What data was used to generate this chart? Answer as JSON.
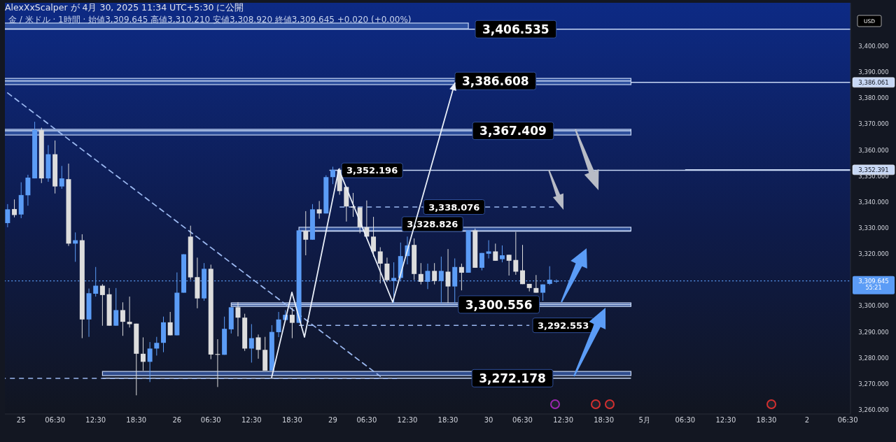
{
  "chart_data": {
    "type": "candlestick",
    "title": "AlexXxScalper が 4月 30, 2025 11:34 UTC+5:30 に公開",
    "subtitle": "金 / 米ドル · 1時間 · 始値3,309.645 高値3,310.210 安値3,308.920 終値3,309.645 +0.020 (+0.00%)",
    "ylabel": "USD",
    "categories": [
      null,
      null,
      "25",
      null,
      null,
      null,
      null,
      "06:30",
      null,
      null,
      null,
      null,
      null,
      "12:30",
      null,
      null,
      null,
      null,
      null,
      "18:30",
      null,
      null,
      null,
      null,
      null,
      "26",
      null,
      null,
      null,
      null,
      "06:30",
      null,
      null,
      null,
      null,
      null,
      "12:30",
      null,
      null,
      null,
      null,
      null,
      "18:30",
      null,
      null,
      null,
      null,
      null,
      "29",
      null,
      null,
      null,
      null,
      "06:30",
      null,
      null,
      null,
      null,
      null,
      "12:30",
      null,
      null,
      null,
      null,
      null,
      "18:30",
      null,
      null,
      null,
      null,
      null,
      "30",
      null,
      null,
      null,
      null,
      "06:30",
      null,
      null,
      null,
      null,
      null,
      "12:30",
      null,
      null,
      null,
      null,
      null,
      "18:30",
      null,
      null,
      null,
      null,
      null,
      "5月",
      null,
      null,
      null,
      null,
      null,
      "06:30",
      null,
      null,
      null,
      null,
      null,
      "12:30",
      null,
      null,
      null,
      null,
      null,
      "18:30",
      null,
      null,
      null,
      null,
      null,
      "2",
      null,
      null,
      null,
      null,
      null,
      "06:30"
    ],
    "ohlc": [
      [
        3331.9,
        3339.2,
        3330.3,
        3337.2
      ],
      [
        3337.3,
        3341.0,
        3334.1,
        3335.0
      ],
      [
        3335.2,
        3347.6,
        3333.8,
        3342.7
      ],
      [
        3342.6,
        3350.5,
        3338.6,
        3349.4
      ],
      [
        3349.1,
        3370.9,
        3349.1,
        3367.7
      ],
      [
        3367.7,
        3368.6,
        3347.3,
        3349.1
      ],
      [
        3349.1,
        3361.9,
        3347.8,
        3358.4
      ],
      [
        3358.4,
        3363.7,
        3343.3,
        3346.0
      ],
      [
        3346.0,
        3353.9,
        3345.1,
        3349.1
      ],
      [
        3348.8,
        3354.8,
        3323.1,
        3324.0
      ],
      [
        3324.0,
        3328.3,
        3317.0,
        3325.3
      ],
      [
        3325.3,
        3327.6,
        3287.6,
        3294.8
      ],
      [
        3294.8,
        3306.7,
        3288.1,
        3304.9
      ],
      [
        3304.7,
        3315.0,
        3303.6,
        3307.8
      ],
      [
        3307.8,
        3308.4,
        3292.4,
        3304.2
      ],
      [
        3304.5,
        3306.9,
        3292.4,
        3292.4
      ],
      [
        3292.4,
        3306.9,
        3292.4,
        3298.4
      ],
      [
        3298.4,
        3301.4,
        3288.5,
        3293.9
      ],
      [
        3293.9,
        3303.6,
        3291.7,
        3293.0
      ],
      [
        3293.2,
        3293.2,
        3265.6,
        3281.6
      ],
      [
        3281.6,
        3287.9,
        3275.1,
        3278.5
      ],
      [
        3278.5,
        3286.1,
        3270.7,
        3283.6
      ],
      [
        3283.6,
        3288.1,
        3280.9,
        3285.8
      ],
      [
        3285.8,
        3295.9,
        3282.2,
        3293.7
      ],
      [
        3293.7,
        3297.7,
        3288.7,
        3288.7
      ],
      [
        3288.7,
        3312.9,
        3288.7,
        3305.1
      ],
      [
        3305.1,
        3319.9,
        3305.1,
        3319.9
      ],
      [
        3326.7,
        3330.9,
        3310.1,
        3311.0
      ],
      [
        3311.1,
        3318.6,
        3299.1,
        3302.9
      ],
      [
        3302.9,
        3316.5,
        3302.0,
        3314.3
      ],
      [
        3314.3,
        3315.9,
        3279.5,
        3281.3
      ],
      [
        3281.5,
        3287.2,
        3268.8,
        3281.2
      ],
      [
        3281.2,
        3295.9,
        3281.2,
        3291.2
      ],
      [
        3291.0,
        3299.5,
        3289.4,
        3299.5
      ],
      [
        3299.5,
        3301.5,
        3288.3,
        3295.5
      ],
      [
        3295.5,
        3297.0,
        3282.7,
        3283.6
      ],
      [
        3283.6,
        3293.0,
        3278.2,
        3287.6
      ],
      [
        3287.9,
        3289.0,
        3279.7,
        3283.1
      ],
      [
        3283.1,
        3288.1,
        3275.1,
        3275.1
      ],
      [
        3275.1,
        3292.6,
        3275.1,
        3290.0
      ],
      [
        3289.9,
        3297.7,
        3288.0,
        3294.8
      ],
      [
        3294.6,
        3298.4,
        3294.0,
        3296.6
      ],
      [
        3296.6,
        3299.3,
        3287.6,
        3293.5
      ],
      [
        3293.5,
        3329.1,
        3293.5,
        3329.1
      ],
      [
        3328.9,
        3336.5,
        3319.5,
        3325.5
      ],
      [
        3325.5,
        3339.2,
        3325.5,
        3337.2
      ],
      [
        3337.2,
        3340.4,
        3333.6,
        3335.6
      ],
      [
        3335.6,
        3350.3,
        3335.6,
        3349.6
      ],
      [
        3349.6,
        3353.6,
        3346.9,
        3352.4
      ],
      [
        3352.4,
        3353.1,
        3342.8,
        3344.2
      ],
      [
        3345.8,
        3346.0,
        3332.5,
        3338.3
      ],
      [
        3338.3,
        3343.5,
        3334.3,
        3337.9
      ],
      [
        3337.9,
        3337.9,
        3328.0,
        3330.3
      ],
      [
        3330.3,
        3340.6,
        3325.8,
        3326.7
      ],
      [
        3326.7,
        3334.3,
        3319.0,
        3321.0
      ],
      [
        3321.0,
        3322.6,
        3308.7,
        3316.3
      ],
      [
        3316.3,
        3318.6,
        3309.2,
        3309.9
      ],
      [
        3309.6,
        3316.8,
        3301.1,
        3310.8
      ],
      [
        3310.8,
        3324.4,
        3309.6,
        3319.2
      ],
      [
        3319.2,
        3326.7,
        3316.0,
        3323.3
      ],
      [
        3323.5,
        3326.0,
        3310.0,
        3312.3
      ],
      [
        3312.3,
        3316.5,
        3308.3,
        3309.3
      ],
      [
        3309.3,
        3316.3,
        3306.5,
        3313.5
      ],
      [
        3313.5,
        3316.5,
        3308.3,
        3309.6
      ],
      [
        3309.6,
        3319.0,
        3301.1,
        3313.5
      ],
      [
        3313.2,
        3321.9,
        3301.1,
        3307.5
      ],
      [
        3307.5,
        3318.3,
        3301.1,
        3315.0
      ],
      [
        3315.0,
        3316.3,
        3306.0,
        3312.8
      ],
      [
        3312.8,
        3329.1,
        3312.8,
        3329.1
      ],
      [
        3329.1,
        3329.8,
        3314.7,
        3314.7
      ],
      [
        3314.7,
        3320.4,
        3313.7,
        3320.4
      ],
      [
        3320.1,
        3325.3,
        3318.3,
        3321.0
      ],
      [
        3321.0,
        3324.0,
        3317.4,
        3317.4
      ],
      [
        3318.0,
        3323.3,
        3316.8,
        3319.5
      ],
      [
        3319.7,
        3319.7,
        3311.7,
        3317.4
      ],
      [
        3317.7,
        3328.5,
        3312.0,
        3313.2
      ],
      [
        3313.7,
        3323.5,
        3308.4,
        3308.4
      ],
      [
        3308.5,
        3308.5,
        3305.6,
        3306.9
      ],
      [
        3306.9,
        3311.9,
        3305.1,
        3305.1
      ],
      [
        3305.1,
        3308.3,
        3302.0,
        3308.3
      ],
      [
        3308.5,
        3315.3,
        3308.1,
        3310.1
      ],
      [
        3309.645,
        3310.21,
        3308.92,
        3309.645
      ],
      null,
      null,
      null,
      null,
      null,
      null,
      null,
      null,
      null,
      null,
      null,
      null,
      null,
      null,
      null,
      null,
      null,
      null,
      null,
      null,
      null,
      null,
      null,
      null,
      null,
      null,
      null,
      null,
      null,
      null,
      null,
      null,
      null,
      null,
      null,
      null,
      null,
      null,
      null,
      null,
      null,
      null,
      null
    ],
    "colors": [
      "#5b9cf6",
      "#dddddd",
      "#5b9cf6",
      "#5b9cf6",
      "#5b9cf6",
      "#dddddd",
      "#5b9cf6",
      "#dddddd",
      "#5b9cf6",
      "#dddddd",
      "#5b9cf6",
      "#dddddd",
      "#5b9cf6",
      "#5b9cf6",
      "#dddddd",
      "#dddddd",
      "#5b9cf6",
      "#dddddd",
      "#dddddd",
      "#dddddd",
      "#dddddd",
      "#5b9cf6",
      "#5b9cf6",
      "#5b9cf6",
      "#dddddd",
      "#5b9cf6",
      "#5b9cf6",
      "#dddddd",
      "#dddddd",
      "#5b9cf6",
      "#dddddd",
      "#dddddd",
      "#5b9cf6",
      "#5b9cf6",
      "#dddddd",
      "#dddddd",
      "#5b9cf6",
      "#dddddd",
      "#dddddd",
      "#5b9cf6",
      "#5b9cf6",
      "#5b9cf6",
      "#dddddd",
      "#5b9cf6",
      "#dddddd",
      "#5b9cf6",
      "#dddddd",
      "#5b9cf6",
      "#5b9cf6",
      "#dddddd",
      "#dddddd",
      "#dddddd",
      "#dddddd",
      "#dddddd",
      "#dddddd",
      "#dddddd",
      "#dddddd",
      "#5b9cf6",
      "#5b9cf6",
      "#5b9cf6",
      "#dddddd",
      "#dddddd",
      "#5b9cf6",
      "#dddddd",
      "#5b9cf6",
      "#dddddd",
      "#5b9cf6",
      "#dddddd",
      "#5b9cf6",
      "#dddddd",
      "#5b9cf6",
      "#5b9cf6",
      "#dddddd",
      "#5b9cf6",
      "#dddddd",
      "#dddddd",
      "#dddddd",
      "#dddddd",
      "#dddddd",
      "#5b9cf6",
      "#5b9cf6",
      "#5b9cf6",
      null,
      null,
      null,
      null,
      null,
      null,
      null,
      null,
      null,
      null,
      null,
      null,
      null,
      null,
      null,
      null,
      null,
      null,
      null,
      null,
      null,
      null,
      null,
      null,
      null,
      null,
      null,
      null,
      null,
      null,
      null,
      null,
      null,
      null,
      null,
      null,
      null,
      null,
      null,
      null,
      null,
      null,
      null
    ],
    "series": [
      {
        "type": "line",
        "color": "#9bb8f0",
        "line_style": "dashed",
        "values": [
          3382.0,
          null,
          null,
          null,
          null,
          null,
          null,
          null,
          null,
          null,
          null,
          null,
          null,
          null,
          null,
          null,
          null,
          null,
          null,
          null,
          null,
          null,
          null,
          null,
          null,
          null,
          null,
          null,
          null,
          null,
          null,
          null,
          null,
          null,
          null,
          null,
          null,
          null,
          null,
          null,
          null,
          null,
          null,
          null,
          null,
          null,
          null,
          null,
          null,
          null,
          null,
          null,
          null,
          null,
          null,
          3272.9,
          null,
          null,
          null,
          null,
          null,
          null,
          null,
          null,
          null,
          null,
          null,
          null,
          null,
          null,
          null,
          null,
          null,
          null,
          null,
          null,
          null,
          null,
          null,
          null,
          null,
          null,
          null,
          null,
          null,
          null,
          null,
          null,
          null,
          null,
          null,
          null,
          null,
          null,
          null,
          null,
          null,
          null,
          null,
          null,
          null,
          null,
          null,
          null,
          null,
          null,
          null,
          null,
          null,
          null,
          null,
          null,
          null,
          null,
          null,
          null,
          null,
          null,
          null,
          null,
          null,
          null,
          null,
          null,
          null
        ]
      }
    ],
    "ylim": [
      3258.4,
      3416.7
    ],
    "yticks": [
      {
        "value": 3260,
        "label": "3,260.000"
      },
      {
        "value": 3270,
        "label": "3,270.000"
      },
      {
        "value": 3280,
        "label": "3,280.000"
      },
      {
        "value": 3290,
        "label": "3,290.000"
      },
      {
        "value": 3300,
        "label": "3,300.000"
      },
      {
        "value": 3320,
        "label": "3,320.000"
      },
      {
        "value": 3330,
        "label": "3,330.000"
      },
      {
        "value": 3340,
        "label": "3,340.000"
      },
      {
        "value": 3350,
        "label": "3,350.000"
      },
      {
        "value": 3360,
        "label": "3,360.000"
      },
      {
        "value": 3370,
        "label": "3,370.000"
      },
      {
        "value": 3380,
        "label": "3,380.000"
      },
      {
        "value": 3390,
        "label": "3,390.000"
      },
      {
        "value": 3400,
        "label": "3,400.000"
      }
    ],
    "bands": [
      {
        "axis": "y",
        "from": 3406.7,
        "to": 3408.9,
        "color": "#3a5fae"
      },
      {
        "axis": "y",
        "from": 3385.2,
        "to": 3387.6,
        "color": "#3a5fae"
      },
      {
        "axis": "y",
        "from": 3365.8,
        "to": 3368.0,
        "color": "#3a5fae"
      },
      {
        "axis": "y",
        "from": 3328.9,
        "to": 3330.3,
        "color": "#3a5fae"
      },
      {
        "axis": "y",
        "from": 3299.8,
        "to": 3301.2,
        "color": "#3a5fae"
      },
      {
        "axis": "y",
        "from": 3273.2,
        "to": 3274.8,
        "color": "#3a5fae"
      }
    ],
    "ref_lines": [
      {
        "axis": "y",
        "value": 3406.535,
        "label": "3,406.535",
        "color": "#c8d8f5",
        "line_style": "solid"
      },
      {
        "axis": "y",
        "value": 3386.608,
        "label": "3,386.608",
        "color": "#c8d8f5",
        "line_style": "solid"
      },
      {
        "axis": "y",
        "value": 3367.409,
        "label": "3,367.409",
        "color": "#c8d8f5",
        "line_style": "solid"
      },
      {
        "axis": "y",
        "value": 3352.196,
        "label": "3,352.196",
        "color": "#c8d8f5",
        "line_style": "solid"
      },
      {
        "axis": "y",
        "value": 3338.076,
        "label": "3,338.076",
        "color": "#9bb8f0",
        "line_style": "dashed"
      },
      {
        "axis": "y",
        "value": 3328.826,
        "label": "3,328.826",
        "color": "#c8d8f5",
        "line_style": "solid"
      },
      {
        "axis": "y",
        "value": 3300.556,
        "label": "3,300.556",
        "color": "#c8d8f5",
        "line_style": "solid"
      },
      {
        "axis": "y",
        "value": 3292.553,
        "label": "3,292.553",
        "color": "#9bb8f0",
        "line_style": "dashed"
      },
      {
        "axis": "y",
        "value": 3272.178,
        "label": "3,272.178",
        "color": "#c8d8f5",
        "line_style": "solid"
      },
      {
        "axis": "y",
        "value": 3386.061,
        "label": "3,386.061",
        "color": "#c8d8f5",
        "line_style": "solid"
      },
      {
        "axis": "y",
        "value": 3352.391,
        "label": "3,352.391",
        "color": "#c8d8f5",
        "line_style": "solid"
      },
      {
        "axis": "y",
        "value": 3309.645,
        "label": "3,309.645",
        "color": "#5b9cf6",
        "line_style": "dotted"
      },
      {
        "axis": "y",
        "value": 3272.1,
        "color": "#9bb8f0",
        "line_style": "dashed"
      }
    ],
    "annotations": [
      "55:21"
    ]
  }
}
